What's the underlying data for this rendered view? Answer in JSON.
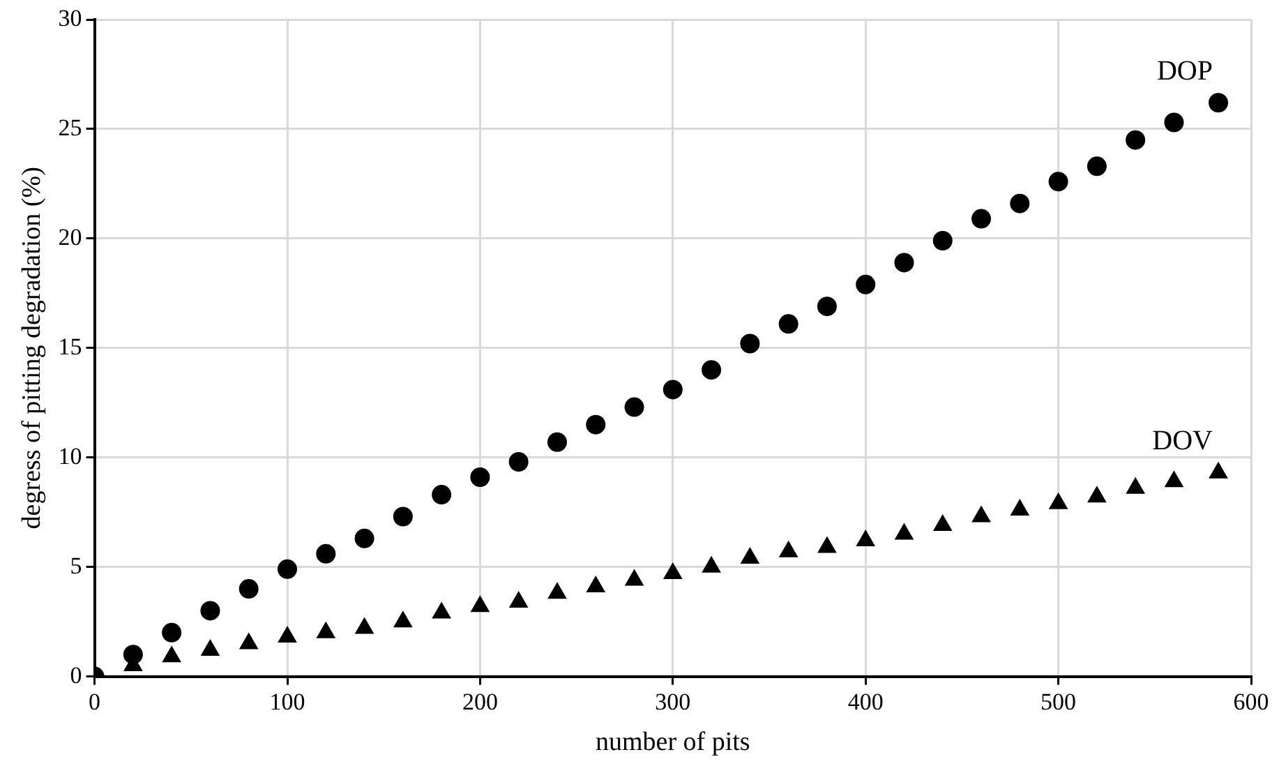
{
  "chart_data": {
    "type": "scatter",
    "xlabel": "number of pits",
    "ylabel": "degress of pitting degradation (%)",
    "xlim": [
      0,
      600
    ],
    "xticks": [
      0,
      100,
      200,
      300,
      400,
      500,
      600
    ],
    "ylim": [
      0,
      30
    ],
    "yticks": [
      0,
      5,
      10,
      15,
      20,
      25,
      30
    ],
    "grid": true,
    "legend": false,
    "x": [
      0,
      20,
      40,
      60,
      80,
      100,
      120,
      140,
      160,
      180,
      200,
      220,
      240,
      260,
      280,
      300,
      320,
      340,
      360,
      380,
      400,
      420,
      440,
      460,
      480,
      500,
      520,
      540,
      560,
      583
    ],
    "series": [
      {
        "name": "DOP",
        "color": "#000000",
        "marker": "circle",
        "values": [
          0,
          1.0,
          2.0,
          3.0,
          4.0,
          4.9,
          5.6,
          6.3,
          7.3,
          8.3,
          9.1,
          9.8,
          10.7,
          11.5,
          12.3,
          13.1,
          14.0,
          15.2,
          16.1,
          16.9,
          17.9,
          18.9,
          19.9,
          20.9,
          21.6,
          22.6,
          23.3,
          24.5,
          25.3,
          26.2
        ]
      },
      {
        "name": "DOV",
        "color": "#000000",
        "marker": "triangle",
        "values": [
          null,
          0.5,
          0.9,
          1.2,
          1.5,
          1.8,
          2.0,
          2.2,
          2.5,
          2.9,
          3.2,
          3.4,
          3.8,
          4.1,
          4.4,
          4.7,
          5.0,
          5.4,
          5.7,
          5.9,
          6.2,
          6.5,
          6.9,
          7.3,
          7.6,
          7.9,
          8.2,
          8.6,
          8.9,
          9.3
        ]
      }
    ]
  }
}
